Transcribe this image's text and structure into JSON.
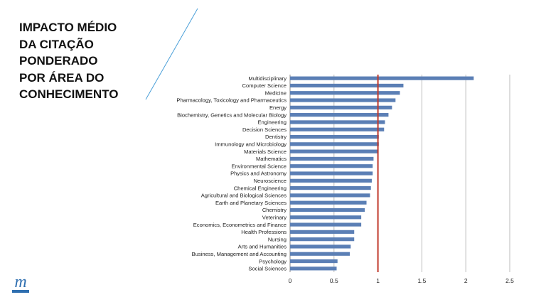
{
  "slide": {
    "title_lines": [
      "IMPACTO MÉDIO",
      "DA CITAÇÃO",
      "PONDERADO",
      "POR ÁREA DO",
      "CONHECIMENTO"
    ],
    "logo_letter": "m",
    "accent_color": "#4a9fd8"
  },
  "chart_data": {
    "type": "bar",
    "orientation": "horizontal",
    "categories": [
      "Multidisciplinary",
      "Computer Science",
      "Medicine",
      "Pharmacology, Toxicology and Pharmaceutics",
      "Energy",
      "Biochemistry, Genetics and Molecular Biology",
      "Engineering",
      "Decision Sciences",
      "Dentistry",
      "Immunology and Microbiology",
      "Materials Science",
      "Mathematics",
      "Environmental Science",
      "Physics and Astronomy",
      "Neuroscience",
      "Chemical Engineering",
      "Agricultural and Biological Sciences",
      "Earth and Planetary Sciences",
      "Chemistry",
      "Veterinary",
      "Economics, Econometrics and Finance",
      "Health Professions",
      "Nursing",
      "Arts and Humanities",
      "Business, Management and Accounting",
      "Psychology",
      "Social Sciences"
    ],
    "values": [
      2.09,
      1.29,
      1.25,
      1.2,
      1.16,
      1.12,
      1.08,
      1.07,
      1.01,
      1.01,
      1.0,
      0.95,
      0.94,
      0.94,
      0.93,
      0.92,
      0.91,
      0.87,
      0.85,
      0.81,
      0.81,
      0.73,
      0.73,
      0.69,
      0.68,
      0.54,
      0.53
    ],
    "xlim": [
      0,
      2.5
    ],
    "xticks": [
      "0",
      "0.5",
      "1",
      "1.5",
      "2",
      "2.5"
    ],
    "reference_line": 1,
    "bar_color": "#5b7fb5",
    "reference_color": "#c0392b",
    "grid": true
  }
}
